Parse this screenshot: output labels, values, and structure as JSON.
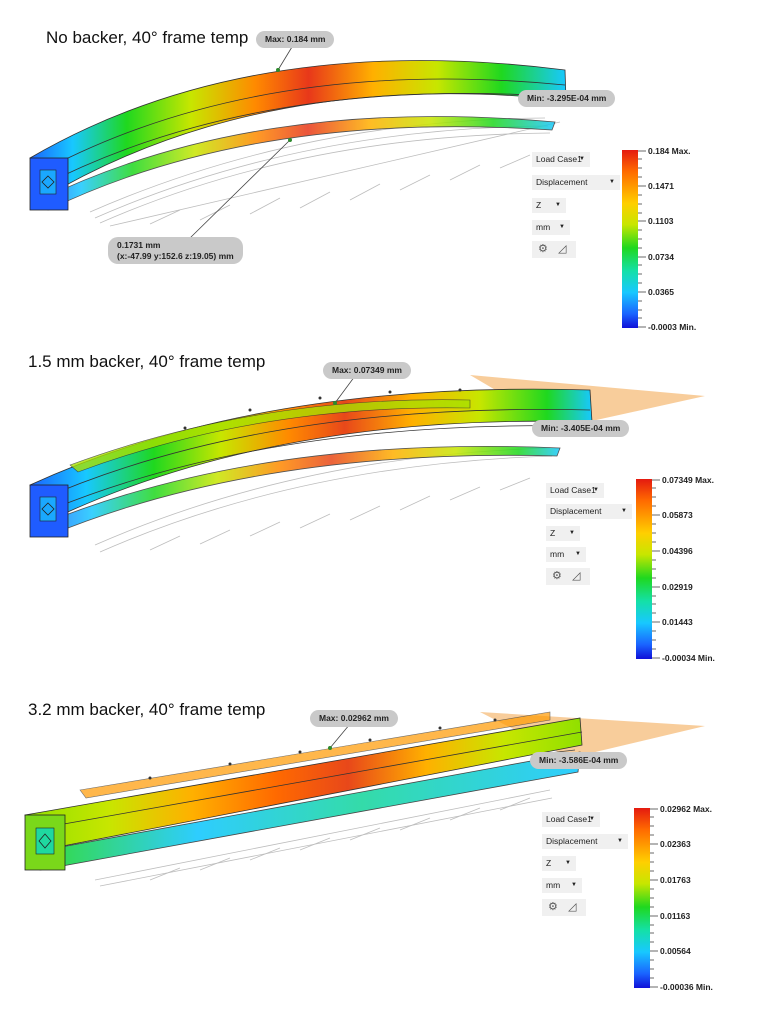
{
  "panels": [
    {
      "title": "No backer, 40° frame temp",
      "max_callout": "Max: 0.184 mm",
      "min_callout": "Min: -3.295E-04 mm",
      "probe_callout": {
        "line1": "0.1731 mm",
        "line2": "(x:-47.99 y:152.6 z:19.05) mm"
      },
      "controls": {
        "load_case": "Load Case1",
        "result_type": "Displacement",
        "component": "Z",
        "units": "mm"
      },
      "legend": [
        "0.184 Max.",
        "0.1471",
        "0.1103",
        "0.0734",
        "0.0365",
        "-0.0003 Min."
      ],
      "has_backer": false,
      "bend": 1.0
    },
    {
      "title": "1.5 mm backer, 40° frame temp",
      "max_callout": "Max: 0.07349 mm",
      "min_callout": "Min: -3.405E-04 mm",
      "controls": {
        "load_case": "Load Case1",
        "result_type": "Displacement",
        "component": "Z",
        "units": "mm"
      },
      "legend": [
        "0.07349 Max.",
        "0.05873",
        "0.04396",
        "0.02919",
        "0.01443",
        "-0.00034 Min."
      ],
      "has_backer": true,
      "bend": 0.65
    },
    {
      "title": "3.2 mm backer, 40° frame temp",
      "max_callout": "Max: 0.02962 mm",
      "min_callout": "Min: -3.586E-04 mm",
      "controls": {
        "load_case": "Load Case1",
        "result_type": "Displacement",
        "component": "Z",
        "units": "mm"
      },
      "legend": [
        "0.02962 Max.",
        "0.02363",
        "0.01763",
        "0.01163",
        "0.00564",
        "-0.00036 Min."
      ],
      "has_backer": true,
      "bend": 0.3
    }
  ],
  "icons": {
    "settings": "gear-icon",
    "ruler": "ruler-triangle-icon"
  },
  "colors": {
    "max": "#e41a10",
    "min": "#1010d8",
    "callout_bg": "#c9c9c9",
    "plane": "#f7c48a"
  }
}
